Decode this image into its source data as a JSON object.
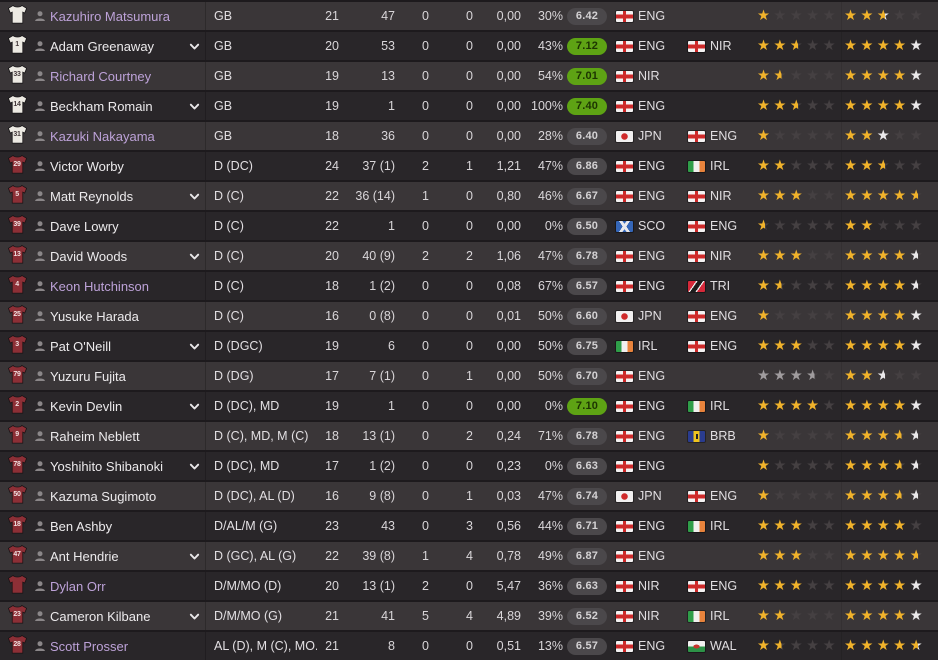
{
  "colors": {
    "row_light": "#3a3638",
    "row_dark": "#292629",
    "name_highlight": "#bda2d8",
    "rating_good_bg": "#5ea314",
    "rating_avg_bg": "#4b484b",
    "star_gold": "#f1b32b",
    "star_uncertain_white": "#ebe9eb",
    "star_silver": "#a09c9e",
    "shirt_gk": "#edeae3",
    "shirt_outfield": "#8d2f36"
  },
  "icons": {
    "star_glyph": "★",
    "shirt": "jersey-icon",
    "person": "profile-icon",
    "dropdown": "chevron-down-icon"
  },
  "table": {
    "rows": [
      {
        "shirt_number": "",
        "shirt_style": "gk",
        "name": "Kazuhiro Matsumura",
        "highlighted": true,
        "dropdown": false,
        "position": "GB",
        "age": "21",
        "apps": "47",
        "stat1": "0",
        "stat2": "0",
        "stat3": "0,00",
        "percent": "30%",
        "rating": "6.42",
        "rating_good": false,
        "nat1": "ENG",
        "nat2": "",
        "stars_current": [
          "g",
          "e",
          "e",
          "e",
          "e"
        ],
        "stars_potential": [
          "g",
          "g",
          "gw",
          "e",
          "e"
        ]
      },
      {
        "shirt_number": "1",
        "shirt_style": "gk",
        "name": "Adam Greenaway",
        "highlighted": false,
        "dropdown": true,
        "position": "GB",
        "age": "20",
        "apps": "53",
        "stat1": "0",
        "stat2": "0",
        "stat3": "0,00",
        "percent": "43%",
        "rating": "7.12",
        "rating_good": true,
        "nat1": "ENG",
        "nat2": "NIR",
        "stars_current": [
          "g",
          "g",
          "gh",
          "e",
          "e"
        ],
        "stars_potential": [
          "g",
          "g",
          "g",
          "g",
          "w"
        ]
      },
      {
        "shirt_number": "33",
        "shirt_style": "gk",
        "name": "Richard Courtney",
        "highlighted": true,
        "dropdown": false,
        "position": "GB",
        "age": "19",
        "apps": "13",
        "stat1": "0",
        "stat2": "0",
        "stat3": "0,00",
        "percent": "54%",
        "rating": "7.01",
        "rating_good": true,
        "nat1": "NIR",
        "nat2": "",
        "stars_current": [
          "g",
          "gh",
          "e",
          "e",
          "e"
        ],
        "stars_potential": [
          "g",
          "g",
          "g",
          "g",
          "w"
        ]
      },
      {
        "shirt_number": "14",
        "shirt_style": "gk",
        "name": "Beckham Romain",
        "highlighted": false,
        "dropdown": true,
        "position": "GB",
        "age": "19",
        "apps": "1",
        "stat1": "0",
        "stat2": "0",
        "stat3": "0,00",
        "percent": "100%",
        "rating": "7.40",
        "rating_good": true,
        "nat1": "ENG",
        "nat2": "",
        "stars_current": [
          "g",
          "g",
          "gh",
          "e",
          "e"
        ],
        "stars_potential": [
          "g",
          "g",
          "g",
          "g",
          "w"
        ]
      },
      {
        "shirt_number": "31",
        "shirt_style": "gk",
        "name": "Kazuki Nakayama",
        "highlighted": true,
        "dropdown": false,
        "position": "GB",
        "age": "18",
        "apps": "36",
        "stat1": "0",
        "stat2": "0",
        "stat3": "0,00",
        "percent": "28%",
        "rating": "6.40",
        "rating_good": false,
        "nat1": "JPN",
        "nat2": "ENG",
        "stars_current": [
          "g",
          "e",
          "e",
          "e",
          "e"
        ],
        "stars_potential": [
          "g",
          "g",
          "w",
          "e",
          "e"
        ]
      },
      {
        "shirt_number": "29",
        "shirt_style": "rd",
        "name": "Victor Worby",
        "highlighted": false,
        "dropdown": false,
        "position": "D (DC)",
        "age": "24",
        "apps": "37 (1)",
        "stat1": "2",
        "stat2": "1",
        "stat3": "1,21",
        "percent": "47%",
        "rating": "6.86",
        "rating_good": false,
        "nat1": "ENG",
        "nat2": "IRL",
        "stars_current": [
          "g",
          "g",
          "e",
          "e",
          "e"
        ],
        "stars_potential": [
          "g",
          "g",
          "gh",
          "e",
          "e"
        ]
      },
      {
        "shirt_number": "5",
        "shirt_style": "rd",
        "name": "Matt Reynolds",
        "highlighted": false,
        "dropdown": true,
        "position": "D (C)",
        "age": "22",
        "apps": "36 (14)",
        "stat1": "1",
        "stat2": "0",
        "stat3": "0,80",
        "percent": "46%",
        "rating": "6.67",
        "rating_good": false,
        "nat1": "ENG",
        "nat2": "NIR",
        "stars_current": [
          "g",
          "g",
          "g",
          "e",
          "e"
        ],
        "stars_potential": [
          "g",
          "g",
          "g",
          "g",
          "gh"
        ]
      },
      {
        "shirt_number": "39",
        "shirt_style": "rd",
        "name": "Dave Lowry",
        "highlighted": false,
        "dropdown": false,
        "position": "D (C)",
        "age": "22",
        "apps": "1",
        "stat1": "0",
        "stat2": "0",
        "stat3": "0,00",
        "percent": "0%",
        "rating": "6.50",
        "rating_good": false,
        "nat1": "SCO",
        "nat2": "ENG",
        "stars_current": [
          "gh",
          "e",
          "e",
          "e",
          "e"
        ],
        "stars_potential": [
          "g",
          "g",
          "e",
          "e",
          "e"
        ]
      },
      {
        "shirt_number": "13",
        "shirt_style": "rd",
        "name": "David Woods",
        "highlighted": false,
        "dropdown": true,
        "position": "D (C)",
        "age": "20",
        "apps": "40 (9)",
        "stat1": "2",
        "stat2": "2",
        "stat3": "1,06",
        "percent": "47%",
        "rating": "6.78",
        "rating_good": false,
        "nat1": "ENG",
        "nat2": "NIR",
        "stars_current": [
          "g",
          "g",
          "g",
          "e",
          "e"
        ],
        "stars_potential": [
          "g",
          "g",
          "g",
          "g",
          "wh"
        ]
      },
      {
        "shirt_number": "4",
        "shirt_style": "rd",
        "name": "Keon Hutchinson",
        "highlighted": true,
        "dropdown": false,
        "position": "D (C)",
        "age": "18",
        "apps": "1 (2)",
        "stat1": "0",
        "stat2": "0",
        "stat3": "0,08",
        "percent": "67%",
        "rating": "6.57",
        "rating_good": false,
        "nat1": "ENG",
        "nat2": "TRI",
        "stars_current": [
          "g",
          "gh",
          "e",
          "e",
          "e"
        ],
        "stars_potential": [
          "g",
          "g",
          "g",
          "g",
          "wh"
        ]
      },
      {
        "shirt_number": "25",
        "shirt_style": "rd",
        "name": "Yusuke Harada",
        "highlighted": false,
        "dropdown": false,
        "position": "D (C)",
        "age": "16",
        "apps": "0 (8)",
        "stat1": "0",
        "stat2": "0",
        "stat3": "0,01",
        "percent": "50%",
        "rating": "6.60",
        "rating_good": false,
        "nat1": "JPN",
        "nat2": "ENG",
        "stars_current": [
          "g",
          "e",
          "e",
          "e",
          "e"
        ],
        "stars_potential": [
          "g",
          "g",
          "g",
          "g",
          "w"
        ]
      },
      {
        "shirt_number": "3",
        "shirt_style": "rd",
        "name": "Pat O'Neill",
        "highlighted": false,
        "dropdown": true,
        "position": "D (DGC)",
        "age": "19",
        "apps": "6",
        "stat1": "0",
        "stat2": "0",
        "stat3": "0,00",
        "percent": "50%",
        "rating": "6.75",
        "rating_good": false,
        "nat1": "IRL",
        "nat2": "ENG",
        "stars_current": [
          "g",
          "g",
          "g",
          "e",
          "e"
        ],
        "stars_potential": [
          "g",
          "g",
          "g",
          "g",
          "w"
        ]
      },
      {
        "shirt_number": "79",
        "shirt_style": "rd",
        "name": "Yuzuru Fujita",
        "highlighted": false,
        "dropdown": false,
        "position": "D (DG)",
        "age": "17",
        "apps": "7 (1)",
        "stat1": "0",
        "stat2": "1",
        "stat3": "0,00",
        "percent": "50%",
        "rating": "6.70",
        "rating_good": false,
        "nat1": "ENG",
        "nat2": "",
        "stars_current": [
          "s",
          "s",
          "s",
          "sh",
          "e"
        ],
        "stars_potential": [
          "g",
          "g",
          "wh",
          "e",
          "e"
        ]
      },
      {
        "shirt_number": "2",
        "shirt_style": "rd",
        "name": "Kevin Devlin",
        "highlighted": false,
        "dropdown": true,
        "position": "D (DC), MD",
        "age": "19",
        "apps": "1",
        "stat1": "0",
        "stat2": "0",
        "stat3": "0,00",
        "percent": "0%",
        "rating": "7.10",
        "rating_good": true,
        "nat1": "ENG",
        "nat2": "IRL",
        "stars_current": [
          "g",
          "g",
          "g",
          "g",
          "e"
        ],
        "stars_potential": [
          "g",
          "g",
          "g",
          "g",
          "w"
        ]
      },
      {
        "shirt_number": "9",
        "shirt_style": "rd",
        "name": "Raheim Neblett",
        "highlighted": false,
        "dropdown": false,
        "position": "D (C), MD, M (C)",
        "age": "18",
        "apps": "13 (1)",
        "stat1": "0",
        "stat2": "2",
        "stat3": "0,24",
        "percent": "71%",
        "rating": "6.78",
        "rating_good": false,
        "nat1": "ENG",
        "nat2": "BRB",
        "stars_current": [
          "g",
          "e",
          "e",
          "e",
          "e"
        ],
        "stars_potential": [
          "g",
          "g",
          "g",
          "gh",
          "wh"
        ]
      },
      {
        "shirt_number": "78",
        "shirt_style": "rd",
        "name": "Yoshihito Shibanoki",
        "highlighted": false,
        "dropdown": true,
        "position": "D (DC), MD",
        "age": "17",
        "apps": "1 (2)",
        "stat1": "0",
        "stat2": "0",
        "stat3": "0,23",
        "percent": "0%",
        "rating": "6.63",
        "rating_good": false,
        "nat1": "ENG",
        "nat2": "",
        "stars_current": [
          "g",
          "e",
          "e",
          "e",
          "e"
        ],
        "stars_potential": [
          "g",
          "g",
          "g",
          "gh",
          "wh"
        ]
      },
      {
        "shirt_number": "50",
        "shirt_style": "rd",
        "name": "Kazuma Sugimoto",
        "highlighted": false,
        "dropdown": false,
        "position": "D (DC), AL (D)",
        "age": "16",
        "apps": "9 (8)",
        "stat1": "0",
        "stat2": "1",
        "stat3": "0,03",
        "percent": "47%",
        "rating": "6.74",
        "rating_good": false,
        "nat1": "JPN",
        "nat2": "ENG",
        "stars_current": [
          "g",
          "e",
          "e",
          "e",
          "e"
        ],
        "stars_potential": [
          "g",
          "g",
          "g",
          "gh",
          "wh"
        ]
      },
      {
        "shirt_number": "18",
        "shirt_style": "rd",
        "name": "Ben Ashby",
        "highlighted": false,
        "dropdown": false,
        "position": "D/AL/M (G)",
        "age": "23",
        "apps": "43",
        "stat1": "0",
        "stat2": "3",
        "stat3": "0,56",
        "percent": "44%",
        "rating": "6.71",
        "rating_good": false,
        "nat1": "ENG",
        "nat2": "IRL",
        "stars_current": [
          "g",
          "g",
          "g",
          "e",
          "e"
        ],
        "stars_potential": [
          "g",
          "g",
          "g",
          "g",
          "e"
        ]
      },
      {
        "shirt_number": "47",
        "shirt_style": "rd",
        "name": "Ant Hendrie",
        "highlighted": false,
        "dropdown": true,
        "position": "D (GC), AL (G)",
        "age": "22",
        "apps": "39 (8)",
        "stat1": "1",
        "stat2": "4",
        "stat3": "0,78",
        "percent": "49%",
        "rating": "6.87",
        "rating_good": false,
        "nat1": "ENG",
        "nat2": "",
        "stars_current": [
          "g",
          "g",
          "g",
          "e",
          "e"
        ],
        "stars_potential": [
          "g",
          "g",
          "g",
          "g",
          "gh"
        ]
      },
      {
        "shirt_number": "",
        "shirt_style": "rd",
        "name": "Dylan Orr",
        "highlighted": true,
        "dropdown": false,
        "position": "D/M/MO (D)",
        "age": "20",
        "apps": "13 (1)",
        "stat1": "2",
        "stat2": "0",
        "stat3": "5,47",
        "percent": "36%",
        "rating": "6.63",
        "rating_good": false,
        "nat1": "NIR",
        "nat2": "ENG",
        "stars_current": [
          "g",
          "g",
          "g",
          "e",
          "e"
        ],
        "stars_potential": [
          "g",
          "g",
          "g",
          "g",
          "w"
        ]
      },
      {
        "shirt_number": "23",
        "shirt_style": "rd",
        "name": "Cameron Kilbane",
        "highlighted": false,
        "dropdown": true,
        "position": "D/M/MO (G)",
        "age": "21",
        "apps": "41",
        "stat1": "5",
        "stat2": "4",
        "stat3": "4,89",
        "percent": "39%",
        "rating": "6.52",
        "rating_good": false,
        "nat1": "NIR",
        "nat2": "IRL",
        "stars_current": [
          "g",
          "g",
          "e",
          "e",
          "e"
        ],
        "stars_potential": [
          "g",
          "g",
          "g",
          "g",
          "w"
        ]
      },
      {
        "shirt_number": "28",
        "shirt_style": "rd",
        "name": "Scott Prosser",
        "highlighted": true,
        "dropdown": false,
        "position": "AL (D), M (C), MO...",
        "age": "21",
        "apps": "8",
        "stat1": "0",
        "stat2": "0",
        "stat3": "0,51",
        "percent": "13%",
        "rating": "6.57",
        "rating_good": false,
        "nat1": "ENG",
        "nat2": "WAL",
        "stars_current": [
          "g",
          "gh",
          "e",
          "e",
          "e"
        ],
        "stars_potential": [
          "g",
          "g",
          "g",
          "g",
          "gw"
        ]
      }
    ]
  }
}
